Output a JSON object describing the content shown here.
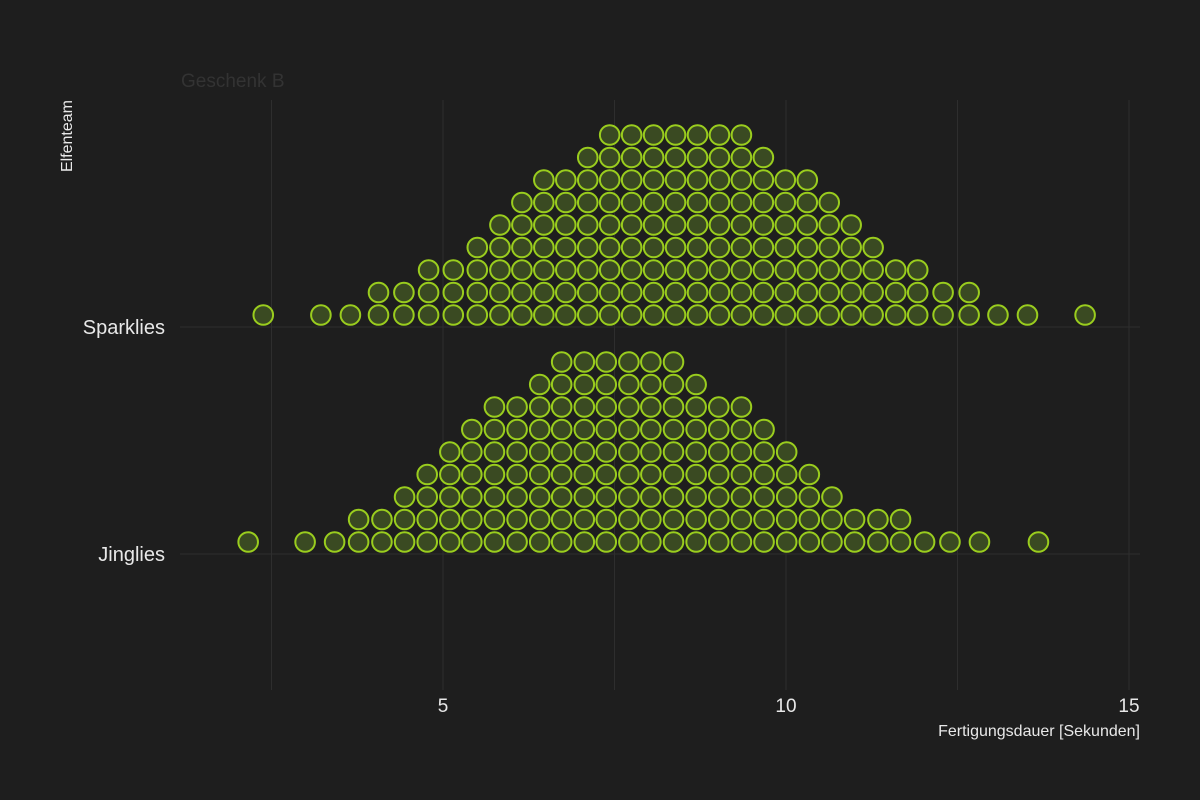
{
  "chart_data": {
    "type": "dotplot",
    "subtitle": "Geschenk B",
    "xlabel": "Fertigungsdauer [Sekunden]",
    "ylabel": "Elfenteam",
    "xlim": [
      1.9,
      15.3
    ],
    "x_ticks": [
      5,
      10,
      15
    ],
    "grid": true,
    "binwidth": 0.33,
    "categories": [
      "Sparklies",
      "Jinglies"
    ],
    "series": [
      {
        "name": "Sparklies",
        "bins": [
          {
            "x": 2.38,
            "count": 1
          },
          {
            "x": 3.22,
            "count": 1
          },
          {
            "x": 3.65,
            "count": 1
          },
          {
            "x": 4.06,
            "count": 2
          },
          {
            "x": 4.43,
            "count": 2
          },
          {
            "x": 4.79,
            "count": 3
          },
          {
            "x": 5.15,
            "count": 3
          },
          {
            "x": 5.5,
            "count": 4
          },
          {
            "x": 5.83,
            "count": 5
          },
          {
            "x": 6.15,
            "count": 6
          },
          {
            "x": 6.47,
            "count": 7
          },
          {
            "x": 6.79,
            "count": 7
          },
          {
            "x": 7.11,
            "count": 8
          },
          {
            "x": 7.43,
            "count": 9
          },
          {
            "x": 7.75,
            "count": 9
          },
          {
            "x": 8.07,
            "count": 9
          },
          {
            "x": 8.39,
            "count": 9
          },
          {
            "x": 8.71,
            "count": 9
          },
          {
            "x": 9.03,
            "count": 9
          },
          {
            "x": 9.35,
            "count": 9
          },
          {
            "x": 9.67,
            "count": 8
          },
          {
            "x": 9.99,
            "count": 7
          },
          {
            "x": 10.31,
            "count": 7
          },
          {
            "x": 10.63,
            "count": 6
          },
          {
            "x": 10.95,
            "count": 5
          },
          {
            "x": 11.27,
            "count": 4
          },
          {
            "x": 11.6,
            "count": 3
          },
          {
            "x": 11.92,
            "count": 3
          },
          {
            "x": 12.29,
            "count": 2
          },
          {
            "x": 12.67,
            "count": 2
          },
          {
            "x": 13.09,
            "count": 1
          },
          {
            "x": 13.52,
            "count": 1
          },
          {
            "x": 14.36,
            "count": 1
          }
        ]
      },
      {
        "name": "Jinglies",
        "bins": [
          {
            "x": 2.16,
            "count": 1
          },
          {
            "x": 2.99,
            "count": 1
          },
          {
            "x": 3.42,
            "count": 1
          },
          {
            "x": 3.77,
            "count": 2
          },
          {
            "x": 4.11,
            "count": 2
          },
          {
            "x": 4.44,
            "count": 3
          },
          {
            "x": 4.77,
            "count": 4
          },
          {
            "x": 5.1,
            "count": 5
          },
          {
            "x": 5.42,
            "count": 6
          },
          {
            "x": 5.75,
            "count": 7
          },
          {
            "x": 6.08,
            "count": 7
          },
          {
            "x": 6.41,
            "count": 8
          },
          {
            "x": 6.73,
            "count": 9
          },
          {
            "x": 7.06,
            "count": 9
          },
          {
            "x": 7.38,
            "count": 9
          },
          {
            "x": 7.71,
            "count": 9
          },
          {
            "x": 8.03,
            "count": 9
          },
          {
            "x": 8.36,
            "count": 9
          },
          {
            "x": 8.69,
            "count": 8
          },
          {
            "x": 9.02,
            "count": 7
          },
          {
            "x": 9.35,
            "count": 7
          },
          {
            "x": 9.68,
            "count": 6
          },
          {
            "x": 10.01,
            "count": 5
          },
          {
            "x": 10.34,
            "count": 4
          },
          {
            "x": 10.67,
            "count": 3
          },
          {
            "x": 11.0,
            "count": 2
          },
          {
            "x": 11.34,
            "count": 2
          },
          {
            "x": 11.67,
            "count": 2
          },
          {
            "x": 12.02,
            "count": 1
          },
          {
            "x": 12.39,
            "count": 1
          },
          {
            "x": 12.82,
            "count": 1
          },
          {
            "x": 13.68,
            "count": 1
          }
        ]
      }
    ]
  },
  "colors": {
    "background": "#1e1e1e",
    "grid": "#2e2e2e",
    "dot_stroke": "#9acd1e",
    "dot_fill": "#3a4a22",
    "text": "#e8e8e8",
    "subtitle": "#333333"
  }
}
